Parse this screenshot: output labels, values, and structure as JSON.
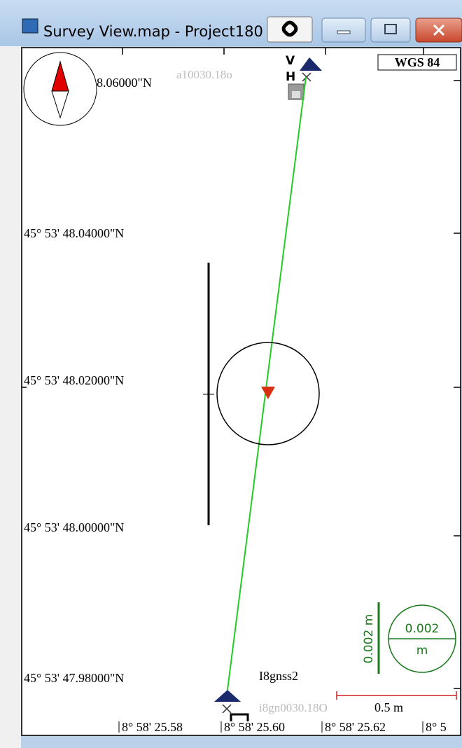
{
  "window": {
    "title": "Survey View.map - Project180"
  },
  "map": {
    "datum": "WGS 84",
    "latitudes": [
      "8.06000\"N",
      "45° 53' 48.04000\"N",
      "45° 53' 48.02000\"N",
      "45° 53' 48.00000\"N",
      "45° 53' 47.98000\"N"
    ],
    "longitudes": [
      "8° 58' 25.58",
      "8° 58' 25.60",
      "8° 58' 25.62",
      "8° 5"
    ],
    "top_station": {
      "file": "a10030.18o",
      "v_label": "V",
      "h_label": "H"
    },
    "bottom_station": {
      "name": "I8gnss2",
      "file": "i8gn0030.18O"
    },
    "scale_bar": "0.5 m",
    "height_scale": "0.002 m",
    "error_circle": {
      "value": "0.002",
      "unit": "m"
    }
  }
}
